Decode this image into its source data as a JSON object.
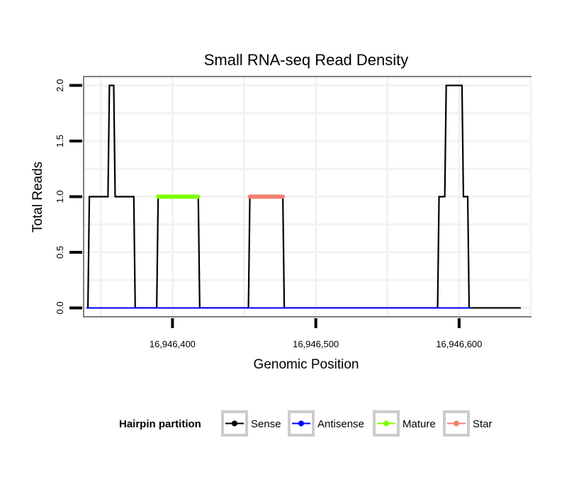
{
  "chart_data": {
    "type": "line",
    "title": "Small RNA-seq Read Density",
    "xlabel": "Genomic Position",
    "ylabel": "Total Reads",
    "xlim": [
      16946338,
      16946650
    ],
    "ylim": [
      -0.08,
      2.08
    ],
    "x_ticks": [
      16946400,
      16946500,
      16946600
    ],
    "x_tick_labels": [
      "16,946,400",
      "16,946,500",
      "16,946,600"
    ],
    "y_ticks": [
      0,
      0.5,
      1,
      1.5,
      2
    ],
    "y_tick_labels": [
      "0.0",
      "0.5",
      "1.0",
      "1.5",
      "2.0"
    ],
    "grid": true,
    "legend": {
      "title": "Hairpin partition",
      "placement": "bottom",
      "entries": [
        "Sense",
        "Antisense",
        "Mature",
        "Star"
      ]
    },
    "series": [
      {
        "name": "Sense",
        "color": "#000000",
        "x": [
          16946340,
          16946341,
          16946342,
          16946355,
          16946356,
          16946359,
          16946360,
          16946373,
          16946374,
          16946375,
          16946389,
          16946390,
          16946391,
          16946418,
          16946419,
          16946420,
          16946453,
          16946454,
          16946455,
          16946477,
          16946478,
          16946479,
          16946585,
          16946586,
          16946587,
          16946590,
          16946591,
          16946602,
          16946603,
          16946606,
          16946607,
          16946608,
          16946643
        ],
        "values": [
          0,
          0,
          1,
          1,
          2,
          2,
          1,
          1,
          0,
          0,
          0,
          1,
          1,
          1,
          0,
          0,
          0,
          1,
          1,
          1,
          0,
          0,
          0,
          1,
          1,
          1,
          2,
          2,
          1,
          1,
          0,
          0,
          0
        ]
      },
      {
        "name": "Antisense",
        "color": "#0000ff",
        "x": [
          16946340,
          16946608
        ],
        "values": [
          0,
          0
        ]
      },
      {
        "name": "Mature",
        "color": "#7fff00",
        "x": [
          16946390,
          16946418
        ],
        "values": [
          1,
          1
        ]
      },
      {
        "name": "Star",
        "color": "#f08070",
        "x": [
          16946454,
          16946477
        ],
        "values": [
          1,
          1
        ]
      }
    ]
  }
}
